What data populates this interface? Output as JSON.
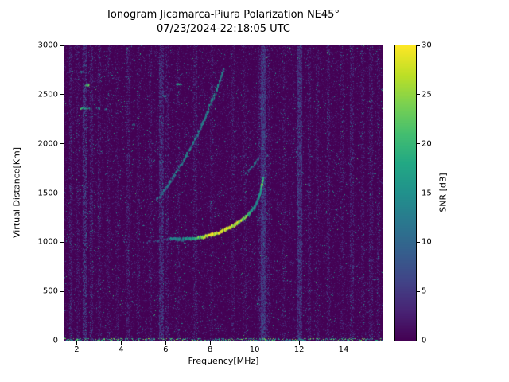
{
  "chart_data": {
    "type": "heatmap",
    "title": "Ionogram Jicamarca-Piura Polarization NE45°",
    "subtitle": "07/23/2024-22:18:05 UTC",
    "xlabel": "Frequency[MHz]",
    "ylabel": "Virtual Distance[Km]",
    "colorbar_label": "SNR [dB]",
    "xlim": [
      1.45,
      15.75
    ],
    "ylim": [
      0,
      3000
    ],
    "clim": [
      0,
      30
    ],
    "xticks": [
      2,
      4,
      6,
      8,
      10,
      12,
      14
    ],
    "yticks": [
      0,
      500,
      1000,
      1500,
      2000,
      2500,
      3000
    ],
    "cticks": [
      0,
      5,
      10,
      15,
      20,
      25,
      30
    ],
    "colormap": "viridis",
    "legend": "none",
    "grid": false,
    "viridis_stops": [
      [
        0.0,
        68,
        1,
        84
      ],
      [
        0.1,
        72,
        36,
        117
      ],
      [
        0.2,
        65,
        68,
        135
      ],
      [
        0.3,
        53,
        95,
        141
      ],
      [
        0.4,
        42,
        120,
        142
      ],
      [
        0.5,
        33,
        145,
        140
      ],
      [
        0.6,
        34,
        168,
        132
      ],
      [
        0.7,
        68,
        190,
        112
      ],
      [
        0.8,
        122,
        209,
        81
      ],
      [
        0.9,
        189,
        223,
        38
      ],
      [
        1.0,
        253,
        231,
        37
      ]
    ],
    "noise": {
      "seed": 1337,
      "density": 0.22,
      "bright_prob": 0.012,
      "rare_prob": 0.0025
    },
    "stripes": [
      {
        "f": 1.72,
        "w": 0.1,
        "density": 0.3,
        "v": 3.5
      },
      {
        "f": 2.05,
        "w": 0.08,
        "density": 0.15,
        "v": 2.5
      },
      {
        "f": 2.35,
        "w": 0.12,
        "density": 0.45,
        "v": 6.0
      },
      {
        "f": 2.65,
        "w": 0.1,
        "density": 0.25,
        "v": 4.0
      },
      {
        "f": 3.0,
        "w": 0.08,
        "density": 0.18,
        "v": 3.0
      },
      {
        "f": 3.4,
        "w": 0.08,
        "density": 0.12,
        "v": 2.5
      },
      {
        "f": 3.8,
        "w": 0.08,
        "density": 0.1,
        "v": 2.0
      },
      {
        "f": 4.3,
        "w": 0.1,
        "density": 0.25,
        "v": 3.5
      },
      {
        "f": 4.75,
        "w": 0.08,
        "density": 0.12,
        "v": 2.5
      },
      {
        "f": 5.3,
        "w": 0.08,
        "density": 0.15,
        "v": 3.0
      },
      {
        "f": 5.8,
        "w": 0.14,
        "density": 0.5,
        "v": 5.0
      },
      {
        "f": 6.05,
        "w": 0.08,
        "density": 0.2,
        "v": 3.0
      },
      {
        "f": 6.55,
        "w": 0.08,
        "density": 0.12,
        "v": 2.5
      },
      {
        "f": 7.3,
        "w": 0.1,
        "density": 0.22,
        "v": 3.0
      },
      {
        "f": 8.05,
        "w": 0.08,
        "density": 0.12,
        "v": 2.5
      },
      {
        "f": 9.0,
        "w": 0.08,
        "density": 0.15,
        "v": 2.5
      },
      {
        "f": 9.55,
        "w": 0.08,
        "density": 0.12,
        "v": 2.5
      },
      {
        "f": 10.2,
        "w": 0.08,
        "density": 0.25,
        "v": 3.5
      },
      {
        "f": 10.37,
        "w": 0.16,
        "density": 0.85,
        "v": 6.0
      },
      {
        "f": 10.6,
        "w": 0.08,
        "density": 0.2,
        "v": 3.0
      },
      {
        "f": 11.3,
        "w": 0.08,
        "density": 0.12,
        "v": 2.5
      },
      {
        "f": 12.0,
        "w": 0.14,
        "density": 0.65,
        "v": 5.5
      },
      {
        "f": 12.45,
        "w": 0.08,
        "density": 0.2,
        "v": 3.0
      },
      {
        "f": 12.8,
        "w": 0.08,
        "density": 0.12,
        "v": 2.5
      },
      {
        "f": 13.3,
        "w": 0.1,
        "density": 0.22,
        "v": 3.0
      },
      {
        "f": 13.9,
        "w": 0.08,
        "density": 0.12,
        "v": 2.5
      },
      {
        "f": 14.35,
        "w": 0.1,
        "density": 0.25,
        "v": 3.5
      },
      {
        "f": 14.85,
        "w": 0.08,
        "density": 0.15,
        "v": 2.5
      },
      {
        "f": 15.2,
        "w": 0.1,
        "density": 0.22,
        "v": 3.0
      },
      {
        "f": 15.55,
        "w": 0.08,
        "density": 0.15,
        "v": 2.5
      }
    ],
    "traces": [
      {
        "name": "f-layer-lead-in",
        "fill": 0.3,
        "th": 2,
        "jx": 2,
        "jy": 3,
        "samples": 1.6,
        "points": [
          [
            4.95,
            995,
            7
          ],
          [
            5.45,
            1005,
            8
          ],
          [
            5.85,
            1018,
            9
          ],
          [
            6.15,
            1032,
            10
          ]
        ]
      },
      {
        "name": "f-layer-main",
        "fill": 0.92,
        "th": 3,
        "jx": 1.5,
        "jy": 2.5,
        "samples": 2.2,
        "points": [
          [
            6.15,
            1035,
            13
          ],
          [
            6.6,
            1028,
            14
          ],
          [
            7.1,
            1033,
            16
          ],
          [
            7.6,
            1050,
            22
          ],
          [
            8.0,
            1072,
            27
          ],
          [
            8.4,
            1102,
            28
          ],
          [
            8.8,
            1142,
            27
          ],
          [
            9.2,
            1192,
            26
          ],
          [
            9.5,
            1242,
            22
          ],
          [
            9.8,
            1305,
            18
          ],
          [
            10.0,
            1365,
            15
          ],
          [
            10.15,
            1435,
            14
          ],
          [
            10.25,
            1515,
            16
          ],
          [
            10.32,
            1595,
            22
          ],
          [
            10.36,
            1655,
            16
          ]
        ]
      },
      {
        "name": "second-hop",
        "fill": 0.55,
        "th": 2.5,
        "jx": 2,
        "jy": 3,
        "samples": 1.8,
        "points": [
          [
            5.55,
            1420,
            10
          ],
          [
            5.85,
            1505,
            11
          ],
          [
            6.15,
            1600,
            12
          ],
          [
            6.5,
            1720,
            13
          ],
          [
            6.85,
            1855,
            13
          ],
          [
            7.2,
            2000,
            14
          ],
          [
            7.55,
            2160,
            13
          ],
          [
            7.85,
            2320,
            14
          ],
          [
            8.15,
            2480,
            15
          ],
          [
            8.4,
            2620,
            14
          ],
          [
            8.6,
            2760,
            12
          ]
        ]
      },
      {
        "name": "oblique-arc",
        "fill": 0.45,
        "th": 2,
        "jx": 2,
        "jy": 2.5,
        "samples": 1.6,
        "points": [
          [
            9.55,
            1705,
            10
          ],
          [
            9.8,
            1748,
            12
          ],
          [
            10.0,
            1798,
            13
          ],
          [
            10.15,
            1865,
            11
          ]
        ]
      }
    ],
    "spots": [
      {
        "f": 2.3,
        "km": 2360,
        "len": 0.3,
        "v": 20
      },
      {
        "f": 2.58,
        "km": 2352,
        "len": 0.12,
        "v": 15
      },
      {
        "f": 2.95,
        "km": 2360,
        "len": 0.12,
        "v": 13
      },
      {
        "f": 2.45,
        "km": 2598,
        "len": 0.16,
        "v": 21
      },
      {
        "f": 3.3,
        "km": 2345,
        "len": 0.1,
        "v": 12
      },
      {
        "f": 4.55,
        "km": 2195,
        "len": 0.1,
        "v": 13
      },
      {
        "f": 6.55,
        "km": 2602,
        "len": 0.1,
        "v": 16
      },
      {
        "f": 2.2,
        "km": 2725,
        "len": 0.08,
        "v": 11
      },
      {
        "f": 5.95,
        "km": 2482,
        "len": 0.08,
        "v": 11
      }
    ]
  }
}
